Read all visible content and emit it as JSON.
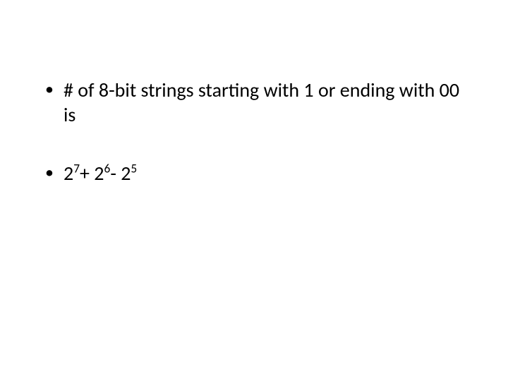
{
  "slide": {
    "background_color": "#ffffff",
    "text_color": "#000000",
    "font_family": "Calibri",
    "bullets": [
      {
        "type": "text",
        "text": "# of 8-bit strings starting with 1 or ending with 00 is",
        "fontsize": 28
      },
      {
        "type": "formula",
        "base1": "2",
        "exp1": "7",
        "op1": "+ ",
        "base2": "2",
        "exp2": "6",
        "op2": "- ",
        "base3": "2",
        "exp3": "5",
        "fontsize": 28
      }
    ]
  }
}
